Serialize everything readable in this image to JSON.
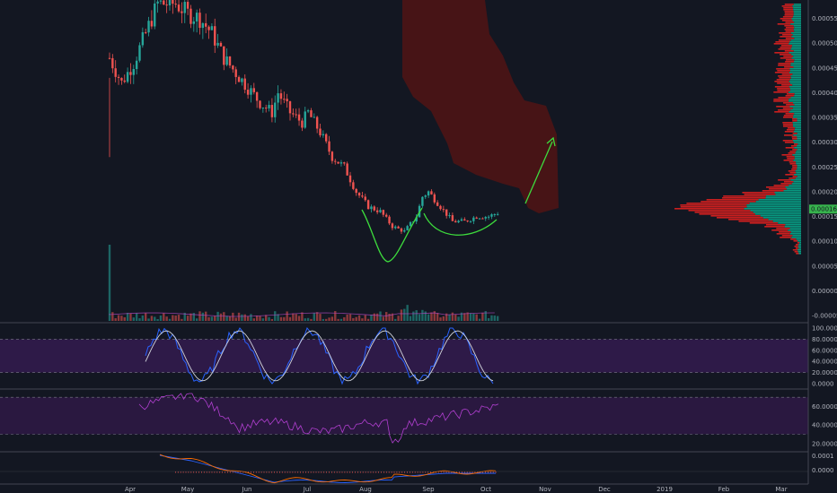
{
  "colors": {
    "background": "#131722",
    "up": "#26a69a",
    "down": "#ef5350",
    "cloud": "#4a1416",
    "arrow": "#3ddc3d",
    "pattern": "#3ddc3d",
    "stoch_fill": "#2e1a48",
    "stoch_k": "#2962ff",
    "stoch_d": "#d1d4dc",
    "rsi_fill": "#2a1840",
    "rsi_line": "#b13fd0",
    "macd_line": "#2962ff",
    "macd_signal": "#ff6d00",
    "macd_hist": "#ef5350",
    "volprofile_up": "#089981",
    "volprofile_down": "#cc1f1f",
    "price_tag": "#37b24d"
  },
  "chart_data": [
    {
      "type": "candlestick",
      "panel": "price",
      "x_tick_labels": [
        "Apr",
        "May",
        "Jun",
        "Jul",
        "Aug",
        "Sep",
        "Oct",
        "Nov",
        "Dec",
        "2019",
        "Feb",
        "Mar"
      ],
      "y_tick_labels": [
        "0.0005500",
        "0.0005000",
        "0.0004500",
        "0.0004000",
        "0.0003500",
        "0.0003000",
        "0.0002500",
        "0.0002000",
        "0.0001500",
        "0.0001000",
        "0.0000500",
        "0.0000000",
        "-0.0000500"
      ],
      "ylim": [
        -5e-05,
        0.00058
      ],
      "price_tag": "0.0001650",
      "last_price": 0.000165,
      "approx_close_path": [
        [
          0,
          0.00047
        ],
        [
          4,
          0.00042
        ],
        [
          8,
          0.00046
        ],
        [
          12,
          0.00052
        ],
        [
          16,
          0.00058
        ],
        [
          22,
          0.00058
        ],
        [
          26,
          0.00056
        ],
        [
          30,
          0.00055
        ],
        [
          34,
          0.00052
        ],
        [
          38,
          0.00047
        ],
        [
          42,
          0.00044
        ],
        [
          46,
          0.00041
        ],
        [
          50,
          0.00038
        ],
        [
          54,
          0.00036
        ],
        [
          56,
          0.0004
        ],
        [
          60,
          0.00036
        ],
        [
          64,
          0.00034
        ],
        [
          66,
          0.00036
        ],
        [
          70,
          0.00032
        ],
        [
          74,
          0.00027
        ],
        [
          78,
          0.00025
        ],
        [
          82,
          0.0002
        ],
        [
          86,
          0.00017
        ],
        [
          90,
          0.00016
        ],
        [
          94,
          0.00013
        ],
        [
          98,
          0.00012
        ],
        [
          102,
          0.00015
        ],
        [
          104,
          0.00019
        ],
        [
          106,
          0.0002
        ],
        [
          110,
          0.00017
        ],
        [
          114,
          0.00014
        ],
        [
          118,
          0.00014
        ],
        [
          122,
          0.00015
        ],
        [
          126,
          0.00015
        ],
        [
          130,
          0.00016
        ]
      ],
      "volume_max": 1.0,
      "volume_profile": "horizontal volume-by-price on right side, peak near 0.000150"
    },
    {
      "type": "line",
      "panel": "stochastic",
      "y_tick_labels": [
        "100.0000",
        "80.0000",
        "60.0000",
        "40.0000",
        "20.0000",
        "0.0000"
      ],
      "ylim": [
        0,
        100
      ],
      "bands": [
        20,
        80
      ]
    },
    {
      "type": "line",
      "panel": "rsi",
      "y_tick_labels": [
        "60.0000",
        "40.0000",
        "20.0000"
      ],
      "ylim": [
        15,
        75
      ],
      "bands": [
        30,
        70
      ]
    },
    {
      "type": "line",
      "panel": "macd",
      "y_tick_labels": [
        "0.0001",
        "0.0000"
      ]
    }
  ]
}
